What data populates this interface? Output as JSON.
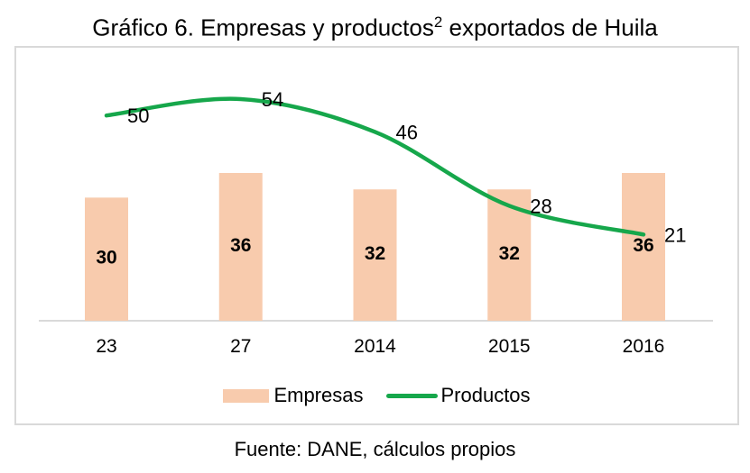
{
  "title": {
    "prefix": "Gráfico 6. Empresas y productos",
    "superscript": "2",
    "suffix": " exportados de Huila"
  },
  "footer": "Fuente: DANE, cálculos propios",
  "colors": {
    "bar": "#F8CBAD",
    "line": "#16A74B",
    "axis": "#D9D9D9",
    "border": "#D9D9D9",
    "text": "#000000"
  },
  "chart_data": {
    "type": "bar",
    "title": "Gráfico 6. Empresas y productos² exportados de Huila",
    "categories": [
      "23",
      "27",
      "2014",
      "2015",
      "2016"
    ],
    "series": [
      {
        "name": "Empresas",
        "type": "bar",
        "values": [
          30,
          36,
          32,
          32,
          36
        ],
        "color": "#F8CBAD"
      },
      {
        "name": "Productos",
        "type": "line",
        "values": [
          50,
          54,
          46,
          28,
          21
        ],
        "color": "#16A74B"
      }
    ],
    "xlabel": "",
    "ylabel": "",
    "ylim": [
      0,
      67
    ],
    "grid": false,
    "legend_position": "bottom",
    "data_labels": true,
    "source": "Fuente: DANE, cálculos propios"
  }
}
